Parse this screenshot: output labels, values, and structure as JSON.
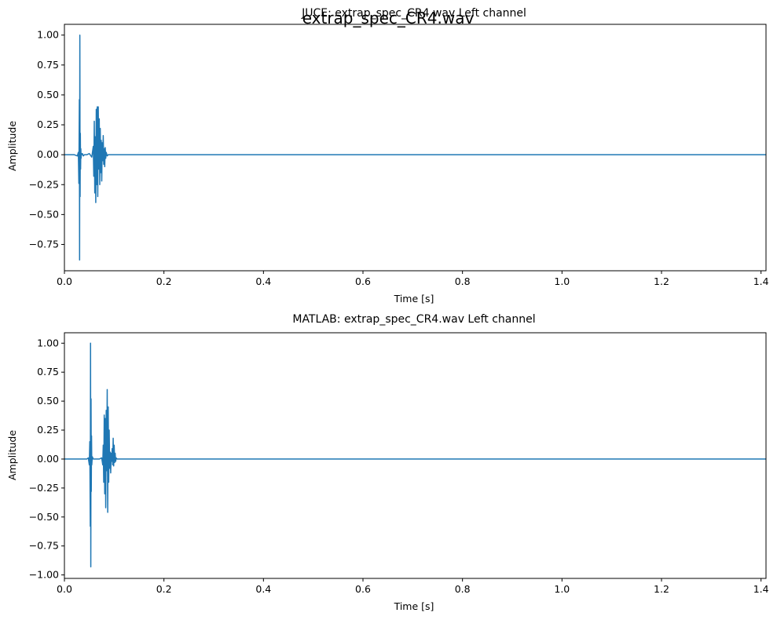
{
  "figure": {
    "suptitle": "extrap_spec_CR4.wav"
  },
  "colors": {
    "line": "#1f77b4",
    "axes": "#000000",
    "background": "#ffffff"
  },
  "chart_data": [
    {
      "type": "line",
      "title": "JUCE: extrap_spec_CR4.wav Left channel",
      "xlabel": "Time [s]",
      "ylabel": "Amplitude",
      "xlim": [
        0,
        1.41
      ],
      "ylim": [
        -0.97,
        1.09
      ],
      "xticks": [
        0,
        0.2,
        0.4,
        0.6,
        0.8,
        1.0,
        1.2,
        1.4
      ],
      "xtick_labels": [
        "0.0",
        "0.2",
        "0.4",
        "0.6",
        "0.8",
        "1.0",
        "1.2",
        "1.4"
      ],
      "yticks": [
        1.0,
        0.75,
        0.5,
        0.25,
        0.0,
        -0.25,
        -0.5,
        -0.75
      ],
      "ytick_labels": [
        "1.00",
        "0.75",
        "0.50",
        "0.25",
        "0.00",
        "−0.25",
        "−0.50",
        "−0.75"
      ],
      "grid": false,
      "series": [
        {
          "x": [
            0.0,
            0.02,
            0.026,
            0.028,
            0.029,
            0.03,
            0.0305,
            0.031,
            0.0315,
            0.032,
            0.0325,
            0.033,
            0.0335,
            0.034,
            0.035,
            0.036,
            0.038,
            0.04,
            0.045,
            0.05,
            0.055,
            0.057,
            0.058,
            0.059,
            0.06,
            0.061,
            0.062,
            0.063,
            0.064,
            0.065,
            0.066,
            0.067,
            0.068,
            0.069,
            0.07,
            0.071,
            0.072,
            0.073,
            0.074,
            0.075,
            0.076,
            0.077,
            0.078,
            0.079,
            0.08,
            0.081,
            0.082,
            0.083,
            0.084,
            0.086,
            0.088,
            0.1,
            1.41
          ],
          "y": [
            0.0,
            0.0,
            -0.01,
            0.02,
            -0.24,
            0.46,
            -0.88,
            1.0,
            -0.35,
            0.18,
            -0.12,
            0.05,
            -0.03,
            0.01,
            0.0,
            0.01,
            -0.01,
            0.0,
            0.0,
            0.01,
            -0.02,
            0.04,
            0.07,
            -0.18,
            0.28,
            -0.32,
            0.15,
            -0.4,
            0.38,
            -0.25,
            0.4,
            -0.35,
            0.4,
            -0.12,
            0.3,
            -0.25,
            0.22,
            -0.15,
            0.12,
            -0.22,
            0.1,
            -0.05,
            0.16,
            -0.08,
            0.05,
            -0.1,
            0.06,
            -0.03,
            0.02,
            -0.01,
            0.0,
            0.0,
            0.0
          ]
        }
      ]
    },
    {
      "type": "line",
      "title": "MATLAB: extrap_spec_CR4.wav Left channel",
      "xlabel": "Time [s]",
      "ylabel": "Amplitude",
      "xlim": [
        0,
        1.41
      ],
      "ylim": [
        -1.03,
        1.09
      ],
      "xticks": [
        0,
        0.2,
        0.4,
        0.6,
        0.8,
        1.0,
        1.2,
        1.4
      ],
      "xtick_labels": [
        "0.0",
        "0.2",
        "0.4",
        "0.6",
        "0.8",
        "1.0",
        "1.2",
        "1.4"
      ],
      "yticks": [
        1.0,
        0.75,
        0.5,
        0.25,
        0.0,
        -0.25,
        -0.5,
        -0.75,
        -1.0
      ],
      "ytick_labels": [
        "1.00",
        "0.75",
        "0.50",
        "0.25",
        "0.00",
        "−0.25",
        "−0.50",
        "−0.75",
        "−1.00"
      ],
      "grid": false,
      "series": [
        {
          "x": [
            0.0,
            0.045,
            0.048,
            0.05,
            0.051,
            0.052,
            0.0525,
            0.053,
            0.0535,
            0.054,
            0.0545,
            0.055,
            0.056,
            0.058,
            0.06,
            0.065,
            0.07,
            0.075,
            0.077,
            0.078,
            0.079,
            0.08,
            0.081,
            0.082,
            0.083,
            0.084,
            0.085,
            0.086,
            0.087,
            0.088,
            0.089,
            0.09,
            0.091,
            0.092,
            0.093,
            0.094,
            0.095,
            0.096,
            0.097,
            0.098,
            0.099,
            0.1,
            0.101,
            0.102,
            0.103,
            0.104,
            0.106,
            0.11,
            1.41
          ],
          "y": [
            0.0,
            0.0,
            0.01,
            -0.05,
            0.15,
            -0.58,
            1.0,
            -0.93,
            0.52,
            -0.28,
            0.2,
            -0.05,
            0.02,
            0.0,
            0.0,
            0.0,
            0.0,
            0.01,
            -0.05,
            0.12,
            -0.2,
            0.38,
            -0.3,
            0.35,
            -0.42,
            0.42,
            -0.1,
            0.6,
            -0.46,
            0.45,
            -0.2,
            0.25,
            -0.08,
            0.06,
            -0.12,
            0.05,
            -0.02,
            0.09,
            -0.05,
            0.18,
            -0.06,
            0.12,
            -0.03,
            0.05,
            -0.02,
            0.01,
            0.0,
            0.0,
            0.0
          ]
        }
      ]
    }
  ]
}
